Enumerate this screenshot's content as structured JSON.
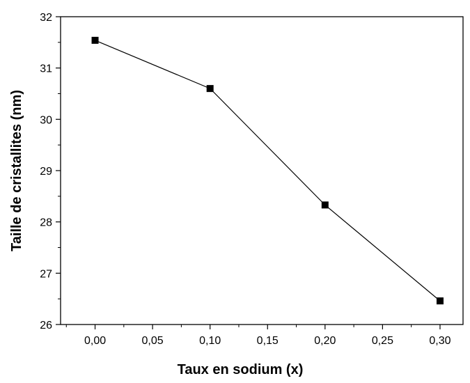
{
  "chart_data": {
    "type": "line",
    "xlabel": "Taux en sodium (x)",
    "ylabel": "Taille de cristallites (nm)",
    "xlim": [
      -0.03,
      0.32
    ],
    "ylim": [
      26,
      32
    ],
    "x_ticks": [
      0.0,
      0.05,
      0.1,
      0.15,
      0.2,
      0.25,
      0.3
    ],
    "x_tick_labels": [
      "0,00",
      "0,05",
      "0,10",
      "0,15",
      "0,20",
      "0,25",
      "0,30"
    ],
    "y_ticks": [
      26,
      27,
      28,
      29,
      30,
      31,
      32
    ],
    "y_tick_labels": [
      "26",
      "27",
      "28",
      "29",
      "30",
      "31",
      "32"
    ],
    "grid": false,
    "marker": "square",
    "series": [
      {
        "x": [
          0.0,
          0.1,
          0.2,
          0.3
        ],
        "values": [
          31.54,
          30.6,
          28.33,
          26.46
        ]
      }
    ],
    "colors": {
      "line": "#000000",
      "marker": "#000000",
      "axes": "#000000",
      "background": "#ffffff"
    }
  }
}
